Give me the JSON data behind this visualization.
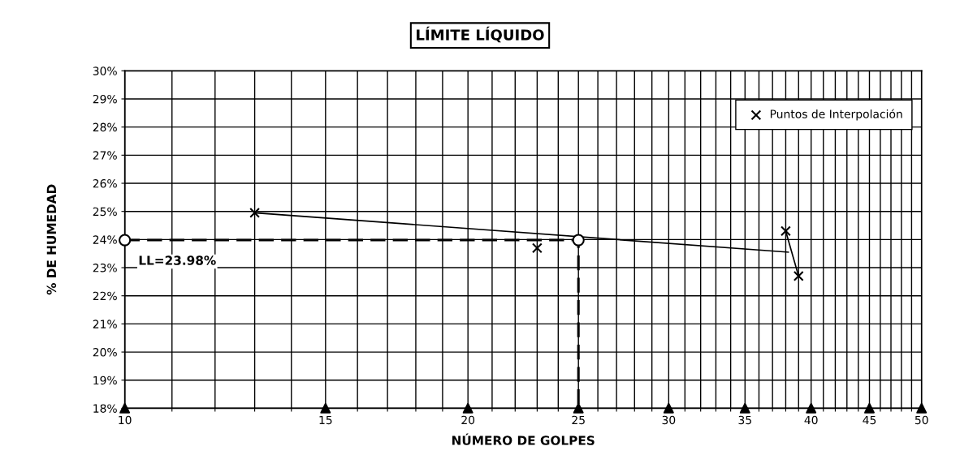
{
  "chart_data": {
    "type": "scatter",
    "title": "LÍMITE LÍQUIDO",
    "xlabel": "NÚMERO DE GOLPES",
    "ylabel": "% DE HUMEDAD",
    "log": "x",
    "grid": true,
    "legend": "top right",
    "xlim": [
      10,
      50
    ],
    "ylim": [
      18,
      30
    ],
    "xticks": [
      10,
      {
        "value": 11,
        "label": null
      },
      {
        "value": 12,
        "label": null
      },
      {
        "value": 13,
        "label": null
      },
      {
        "value": 14,
        "label": null
      },
      15,
      {
        "value": 16,
        "label": null
      },
      {
        "value": 17,
        "label": null
      },
      {
        "value": 18,
        "label": null
      },
      {
        "value": 19,
        "label": null
      },
      20,
      {
        "value": 21,
        "label": null
      },
      {
        "value": 22,
        "label": null
      },
      {
        "value": 23,
        "label": null
      },
      {
        "value": 24,
        "label": null
      },
      25,
      {
        "value": 26,
        "label": null
      },
      {
        "value": 27,
        "label": null
      },
      {
        "value": 28,
        "label": null
      },
      {
        "value": 29,
        "label": null
      },
      30,
      {
        "value": 31,
        "label": null
      },
      {
        "value": 32,
        "label": null
      },
      {
        "value": 33,
        "label": null
      },
      {
        "value": 34,
        "label": null
      },
      35,
      {
        "value": 36,
        "label": null
      },
      {
        "value": 37,
        "label": null
      },
      {
        "value": 38,
        "label": null
      },
      {
        "value": 39,
        "label": null
      },
      40,
      {
        "value": 41,
        "label": null
      },
      {
        "value": 42,
        "label": null
      },
      {
        "value": 43,
        "label": null
      },
      {
        "value": 44,
        "label": null
      },
      45,
      {
        "value": 46,
        "label": null
      },
      {
        "value": 47,
        "label": null
      },
      {
        "value": 48,
        "label": null
      },
      {
        "value": 49,
        "label": null
      },
      50
    ],
    "yticks": [
      {
        "value": 18,
        "label": "18%"
      },
      {
        "value": 19,
        "label": "19%"
      },
      {
        "value": 20,
        "label": "20%"
      },
      {
        "value": 21,
        "label": "21%"
      },
      {
        "value": 22,
        "label": "22%"
      },
      {
        "value": 23,
        "label": "23%"
      },
      {
        "value": 24,
        "label": "24%"
      },
      {
        "value": 25,
        "label": "25%"
      },
      {
        "value": 26,
        "label": "26%"
      },
      {
        "value": 27,
        "label": "27%"
      },
      {
        "value": 28,
        "label": "28%"
      },
      {
        "value": 29,
        "label": "29%"
      },
      {
        "value": 30,
        "label": "30%"
      }
    ],
    "series": [
      {
        "type": "line",
        "color": "#000000",
        "x": [
          13,
          38.2
        ],
        "values": [
          24.95,
          23.55
        ],
        "marker": "none",
        "line_style": "solid"
      },
      {
        "type": "line",
        "color": "#000000",
        "x": [
          38,
          39
        ],
        "values": [
          24.3,
          22.7
        ],
        "marker": "none",
        "line_style": "solid"
      },
      {
        "type": "line",
        "color": "#000000",
        "x": [
          10,
          25,
          25
        ],
        "values": [
          23.98,
          23.98,
          18
        ],
        "marker": "none",
        "line_style": "dashed"
      },
      {
        "color": "#000000",
        "x": [
          10,
          25
        ],
        "values": [
          23.98,
          23.98
        ],
        "marker": "circle"
      },
      {
        "color": "#000000",
        "x": [
          10,
          15,
          20,
          25,
          30,
          35,
          40,
          45,
          50
        ],
        "values": [
          18,
          18,
          18,
          18,
          18,
          18,
          18,
          18,
          18
        ],
        "marker": "triangle"
      },
      {
        "name": "Puntos de Interpolación",
        "color": "#000000",
        "x": [
          13,
          23,
          38,
          39
        ],
        "values": [
          24.95,
          23.7,
          24.3,
          22.7
        ],
        "marker": "cross"
      }
    ],
    "annotations": [
      {
        "text": "LL=23.98%",
        "x": 10,
        "y": 23.98
      }
    ]
  }
}
